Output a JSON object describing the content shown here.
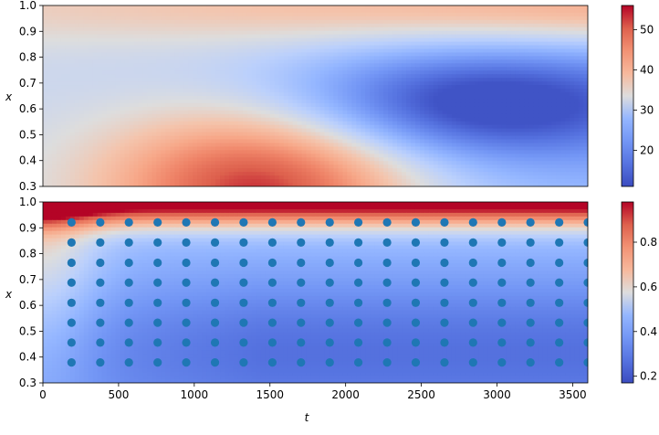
{
  "chart_data": [
    {
      "type": "heatmap",
      "title": "",
      "xlabel": "",
      "ylabel": "x",
      "xlim": [
        0,
        3600
      ],
      "ylim": [
        0.3,
        1.0
      ],
      "yticks": [
        "0.3",
        "0.4",
        "0.5",
        "0.6",
        "0.7",
        "0.8",
        "0.9",
        "1.0"
      ],
      "xticks_shown": false,
      "colormap": "coolwarm",
      "colorbar": {
        "range": [
          11,
          56
        ],
        "ticks": [
          "20",
          "30",
          "40",
          "50"
        ]
      },
      "features": [
        {
          "description": "maximum",
          "t": 1450,
          "x": 0.3,
          "value": 56
        },
        {
          "description": "minimum",
          "t": 2700,
          "x": 0.63,
          "value": 12
        },
        {
          "description": "upper-right warm band",
          "t": 3600,
          "x": 1.0,
          "value": 50
        }
      ]
    },
    {
      "type": "heatmap",
      "title": "",
      "xlabel": "t",
      "ylabel": "x",
      "xlim": [
        0,
        3600
      ],
      "ylim": [
        0.3,
        1.0
      ],
      "xticks": [
        "0",
        "500",
        "1000",
        "1500",
        "2000",
        "2500",
        "3000",
        "3500"
      ],
      "yticks": [
        "0.3",
        "0.4",
        "0.5",
        "0.6",
        "0.7",
        "0.8",
        "0.9",
        "1.0"
      ],
      "colormap": "coolwarm",
      "colorbar": {
        "range": [
          0.17,
          0.98
        ],
        "ticks": [
          "0.2",
          "0.4",
          "0.6",
          "0.8"
        ]
      },
      "scatter": {
        "color": "#1f77b4",
        "t": [
          189,
          379,
          568,
          758,
          947,
          1137,
          1326,
          1516,
          1705,
          1895,
          2084,
          2274,
          2463,
          2653,
          2842,
          3032,
          3221,
          3411,
          3600
        ],
        "x": [
          0.379,
          0.456,
          0.533,
          0.61,
          0.688,
          0.765,
          0.843,
          0.921
        ]
      }
    }
  ]
}
